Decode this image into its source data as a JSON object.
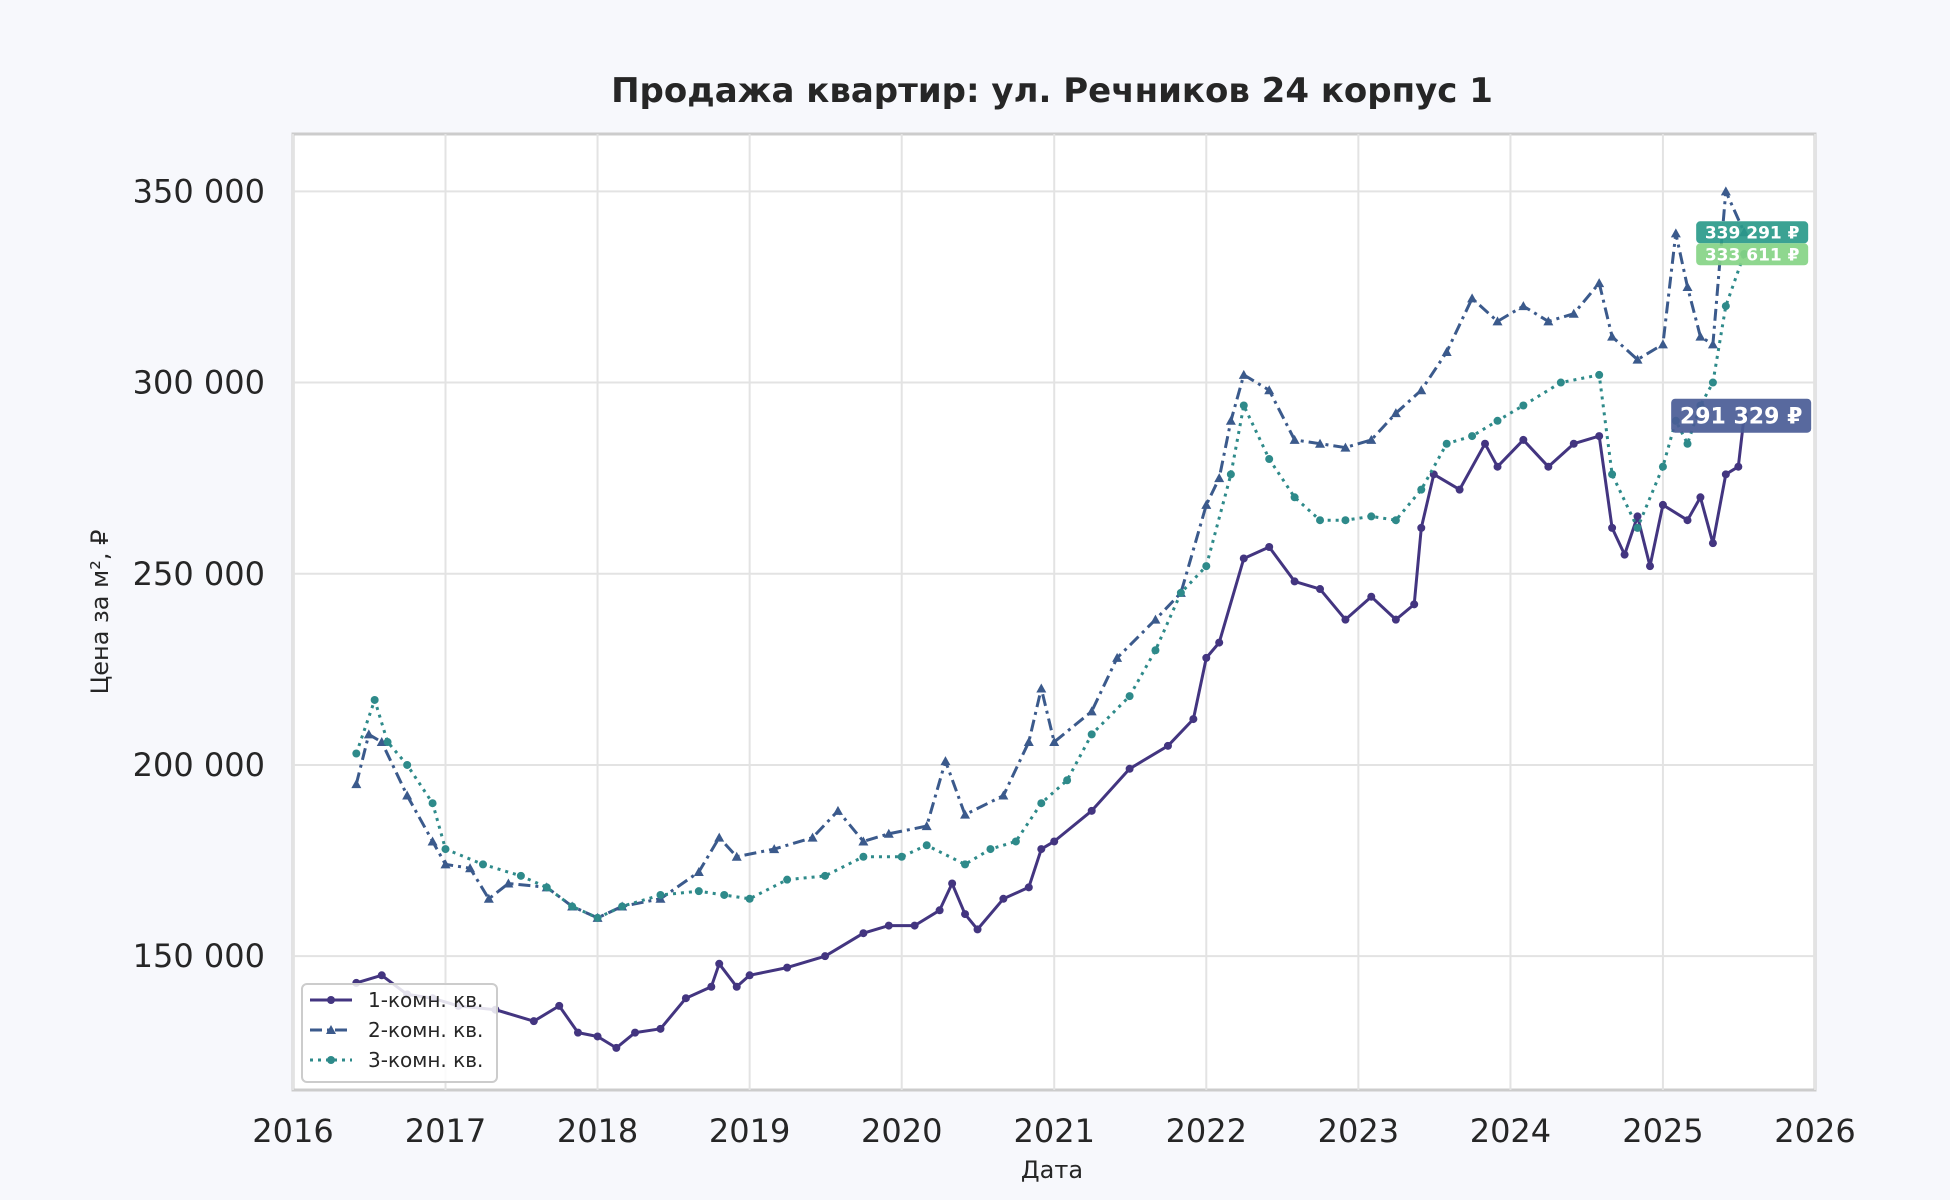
{
  "chart_data": {
    "type": "line",
    "title": "Продажа квартир: ул. Речников 24 корпус 1",
    "xlabel": "Дата",
    "ylabel": "Цена за м², ₽",
    "xlim": [
      "2016-01-01",
      "2026-01-01"
    ],
    "ylim": [
      115000,
      365000
    ],
    "x_ticks": [
      "2016",
      "2017",
      "2018",
      "2019",
      "2020",
      "2021",
      "2022",
      "2023",
      "2024",
      "2025",
      "2026"
    ],
    "y_ticks": [
      {
        "value": 150000,
        "label": "150 000"
      },
      {
        "value": 200000,
        "label": "200 000"
      },
      {
        "value": 250000,
        "label": "250 000"
      },
      {
        "value": 300000,
        "label": "300 000"
      },
      {
        "value": 350000,
        "label": "350 000"
      }
    ],
    "grid": true,
    "legend_position": "bottom-left",
    "series": [
      {
        "name": "1-комн. кв.",
        "color": "#433580",
        "dash": "solid",
        "marker": "circle",
        "end_label": "291 329 ₽",
        "end_label_color": "#4a5c96",
        "points": [
          [
            "2016-06-01",
            143000
          ],
          [
            "2016-08-01",
            145000
          ],
          [
            "2016-10-01",
            140000
          ],
          [
            "2016-12-01",
            139000
          ],
          [
            "2017-02-01",
            137000
          ],
          [
            "2017-05-01",
            136000
          ],
          [
            "2017-08-01",
            133000
          ],
          [
            "2017-10-01",
            137000
          ],
          [
            "2017-11-15",
            130000
          ],
          [
            "2018-01-01",
            129000
          ],
          [
            "2018-02-15",
            126000
          ],
          [
            "2018-04-01",
            130000
          ],
          [
            "2018-06-01",
            131000
          ],
          [
            "2018-08-01",
            139000
          ],
          [
            "2018-10-01",
            142000
          ],
          [
            "2018-10-20",
            148000
          ],
          [
            "2018-12-01",
            142000
          ],
          [
            "2019-01-01",
            145000
          ],
          [
            "2019-04-01",
            147000
          ],
          [
            "2019-07-01",
            150000
          ],
          [
            "2019-10-01",
            156000
          ],
          [
            "2019-12-01",
            158000
          ],
          [
            "2020-02-01",
            158000
          ],
          [
            "2020-04-01",
            162000
          ],
          [
            "2020-05-01",
            169000
          ],
          [
            "2020-06-01",
            161000
          ],
          [
            "2020-07-01",
            157000
          ],
          [
            "2020-09-01",
            165000
          ],
          [
            "2020-11-01",
            168000
          ],
          [
            "2020-12-01",
            178000
          ],
          [
            "2021-01-01",
            180000
          ],
          [
            "2021-04-01",
            188000
          ],
          [
            "2021-07-01",
            199000
          ],
          [
            "2021-10-01",
            205000
          ],
          [
            "2021-12-01",
            212000
          ],
          [
            "2022-01-01",
            228000
          ],
          [
            "2022-02-01",
            232000
          ],
          [
            "2022-04-01",
            254000
          ],
          [
            "2022-06-01",
            257000
          ],
          [
            "2022-08-01",
            248000
          ],
          [
            "2022-10-01",
            246000
          ],
          [
            "2022-12-01",
            238000
          ],
          [
            "2023-02-01",
            244000
          ],
          [
            "2023-04-01",
            238000
          ],
          [
            "2023-05-15",
            242000
          ],
          [
            "2023-06-01",
            262000
          ],
          [
            "2023-07-01",
            276000
          ],
          [
            "2023-09-01",
            272000
          ],
          [
            "2023-11-01",
            284000
          ],
          [
            "2023-12-01",
            278000
          ],
          [
            "2024-02-01",
            285000
          ],
          [
            "2024-04-01",
            278000
          ],
          [
            "2024-06-01",
            284000
          ],
          [
            "2024-08-01",
            286000
          ],
          [
            "2024-09-01",
            262000
          ],
          [
            "2024-10-01",
            255000
          ],
          [
            "2024-11-01",
            265000
          ],
          [
            "2024-12-01",
            252000
          ],
          [
            "2025-01-01",
            268000
          ],
          [
            "2025-03-01",
            264000
          ],
          [
            "2025-04-01",
            270000
          ],
          [
            "2025-05-01",
            258000
          ],
          [
            "2025-06-01",
            276000
          ],
          [
            "2025-07-01",
            278000
          ],
          [
            "2025-07-15",
            291329
          ]
        ]
      },
      {
        "name": "2-комн. кв.",
        "color": "#3b5a8c",
        "dash": "dashdot",
        "marker": "triangle",
        "end_label": "339 291 ₽",
        "end_label_color": "#2a9a8a",
        "points": [
          [
            "2016-06-01",
            195000
          ],
          [
            "2016-07-01",
            208000
          ],
          [
            "2016-08-01",
            206000
          ],
          [
            "2016-10-01",
            192000
          ],
          [
            "2016-12-01",
            180000
          ],
          [
            "2017-01-01",
            174000
          ],
          [
            "2017-03-01",
            173000
          ],
          [
            "2017-04-15",
            165000
          ],
          [
            "2017-06-01",
            169000
          ],
          [
            "2017-09-01",
            168000
          ],
          [
            "2017-11-01",
            163000
          ],
          [
            "2018-01-01",
            160000
          ],
          [
            "2018-03-01",
            163000
          ],
          [
            "2018-06-01",
            165000
          ],
          [
            "2018-09-01",
            172000
          ],
          [
            "2018-10-20",
            181000
          ],
          [
            "2018-12-01",
            176000
          ],
          [
            "2019-03-01",
            178000
          ],
          [
            "2019-06-01",
            181000
          ],
          [
            "2019-08-01",
            188000
          ],
          [
            "2019-10-01",
            180000
          ],
          [
            "2019-12-01",
            182000
          ],
          [
            "2020-03-01",
            184000
          ],
          [
            "2020-04-15",
            201000
          ],
          [
            "2020-06-01",
            187000
          ],
          [
            "2020-09-01",
            192000
          ],
          [
            "2020-11-01",
            206000
          ],
          [
            "2020-12-01",
            220000
          ],
          [
            "2021-01-01",
            206000
          ],
          [
            "2021-04-01",
            214000
          ],
          [
            "2021-06-01",
            228000
          ],
          [
            "2021-09-01",
            238000
          ],
          [
            "2021-11-01",
            245000
          ],
          [
            "2022-01-01",
            268000
          ],
          [
            "2022-02-01",
            275000
          ],
          [
            "2022-03-01",
            290000
          ],
          [
            "2022-04-01",
            302000
          ],
          [
            "2022-06-01",
            298000
          ],
          [
            "2022-08-01",
            285000
          ],
          [
            "2022-10-01",
            284000
          ],
          [
            "2022-12-01",
            283000
          ],
          [
            "2023-02-01",
            285000
          ],
          [
            "2023-04-01",
            292000
          ],
          [
            "2023-06-01",
            298000
          ],
          [
            "2023-08-01",
            308000
          ],
          [
            "2023-10-01",
            322000
          ],
          [
            "2023-12-01",
            316000
          ],
          [
            "2024-02-01",
            320000
          ],
          [
            "2024-04-01",
            316000
          ],
          [
            "2024-06-01",
            318000
          ],
          [
            "2024-08-01",
            326000
          ],
          [
            "2024-09-01",
            312000
          ],
          [
            "2024-11-01",
            306000
          ],
          [
            "2025-01-01",
            310000
          ],
          [
            "2025-02-01",
            339000
          ],
          [
            "2025-03-01",
            325000
          ],
          [
            "2025-04-01",
            312000
          ],
          [
            "2025-05-01",
            310000
          ],
          [
            "2025-06-01",
            350000
          ],
          [
            "2025-07-15",
            339291
          ]
        ]
      },
      {
        "name": "3-комн. кв.",
        "color": "#2e8a8a",
        "dash": "dotted",
        "marker": "circle",
        "end_label": "333 611 ₽",
        "end_label_color": "#86d485",
        "points": [
          [
            "2016-06-01",
            203000
          ],
          [
            "2016-07-15",
            217000
          ],
          [
            "2016-08-15",
            206000
          ],
          [
            "2016-10-01",
            200000
          ],
          [
            "2016-12-01",
            190000
          ],
          [
            "2017-01-01",
            178000
          ],
          [
            "2017-04-01",
            174000
          ],
          [
            "2017-07-01",
            171000
          ],
          [
            "2017-09-01",
            168000
          ],
          [
            "2017-11-01",
            163000
          ],
          [
            "2018-01-01",
            160000
          ],
          [
            "2018-03-01",
            163000
          ],
          [
            "2018-06-01",
            166000
          ],
          [
            "2018-09-01",
            167000
          ],
          [
            "2018-11-01",
            166000
          ],
          [
            "2019-01-01",
            165000
          ],
          [
            "2019-04-01",
            170000
          ],
          [
            "2019-07-01",
            171000
          ],
          [
            "2019-10-01",
            176000
          ],
          [
            "2020-01-01",
            176000
          ],
          [
            "2020-03-01",
            179000
          ],
          [
            "2020-06-01",
            174000
          ],
          [
            "2020-08-01",
            178000
          ],
          [
            "2020-10-01",
            180000
          ],
          [
            "2020-12-01",
            190000
          ],
          [
            "2021-02-01",
            196000
          ],
          [
            "2021-04-01",
            208000
          ],
          [
            "2021-07-01",
            218000
          ],
          [
            "2021-09-01",
            230000
          ],
          [
            "2021-11-01",
            245000
          ],
          [
            "2022-01-01",
            252000
          ],
          [
            "2022-03-01",
            276000
          ],
          [
            "2022-04-01",
            294000
          ],
          [
            "2022-06-01",
            280000
          ],
          [
            "2022-08-01",
            270000
          ],
          [
            "2022-10-01",
            264000
          ],
          [
            "2022-12-01",
            264000
          ],
          [
            "2023-02-01",
            265000
          ],
          [
            "2023-04-01",
            264000
          ],
          [
            "2023-06-01",
            272000
          ],
          [
            "2023-08-01",
            284000
          ],
          [
            "2023-10-01",
            286000
          ],
          [
            "2023-12-01",
            290000
          ],
          [
            "2024-02-01",
            294000
          ],
          [
            "2024-05-01",
            300000
          ],
          [
            "2024-08-01",
            302000
          ],
          [
            "2024-09-01",
            276000
          ],
          [
            "2024-11-01",
            262000
          ],
          [
            "2025-01-01",
            278000
          ],
          [
            "2025-02-01",
            290000
          ],
          [
            "2025-03-01",
            284000
          ],
          [
            "2025-04-01",
            294000
          ],
          [
            "2025-05-01",
            300000
          ],
          [
            "2025-06-01",
            320000
          ],
          [
            "2025-07-15",
            333611
          ]
        ]
      }
    ]
  }
}
